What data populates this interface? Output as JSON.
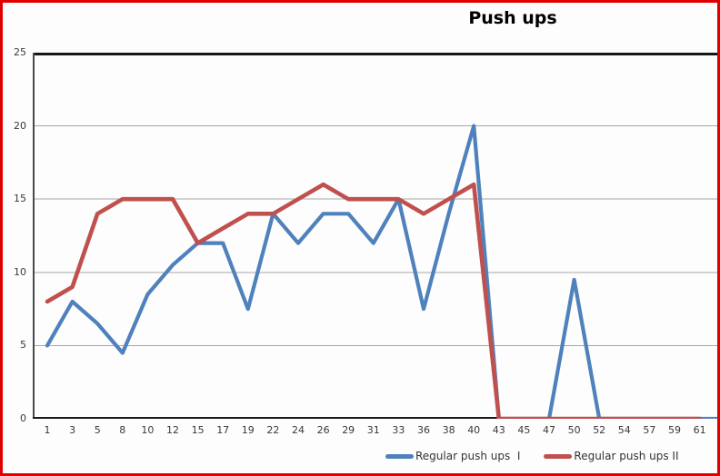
{
  "chart": {
    "title": "Push ups"
  },
  "colors": {
    "frame_border": "#E00000",
    "series_blue": "#4F81BD",
    "series_red": "#C0504D",
    "gridline": "#A6A6A6",
    "axis_dark": "#171717",
    "axis_left": "#4A4A4A",
    "tick_text": "#393939"
  },
  "chart_data": {
    "type": "line",
    "title": "Push ups",
    "xlabel": "",
    "ylabel": "",
    "ylim": [
      0,
      25
    ],
    "y_ticks": [
      0,
      5,
      10,
      15,
      20,
      25
    ],
    "grid": "horizontal",
    "legend_position": "bottom",
    "categories": [
      "1",
      "3",
      "5",
      "8",
      "10",
      "12",
      "15",
      "17",
      "19",
      "22",
      "24",
      "26",
      "29",
      "31",
      "33",
      "36",
      "38",
      "40",
      "43",
      "45",
      "47",
      "50",
      "52",
      "54",
      "57",
      "59",
      "61",
      ""
    ],
    "series": [
      {
        "name": "Regular push ups  I",
        "color": "#4F81BD",
        "values": [
          5,
          8,
          6.5,
          4.5,
          8.5,
          10.5,
          12,
          12,
          7.5,
          14,
          12,
          14,
          14,
          12,
          15,
          7.5,
          14,
          20,
          0,
          0,
          0,
          9.5,
          0,
          0,
          0,
          0,
          0,
          0
        ]
      },
      {
        "name": "Regular push ups II",
        "color": "#C0504D",
        "values": [
          8,
          9,
          14,
          15,
          15,
          15,
          12,
          13,
          14,
          14,
          15,
          16,
          15,
          15,
          15,
          14,
          15,
          16,
          0,
          0,
          0,
          0,
          0,
          0,
          0,
          0,
          0
        ]
      }
    ]
  }
}
